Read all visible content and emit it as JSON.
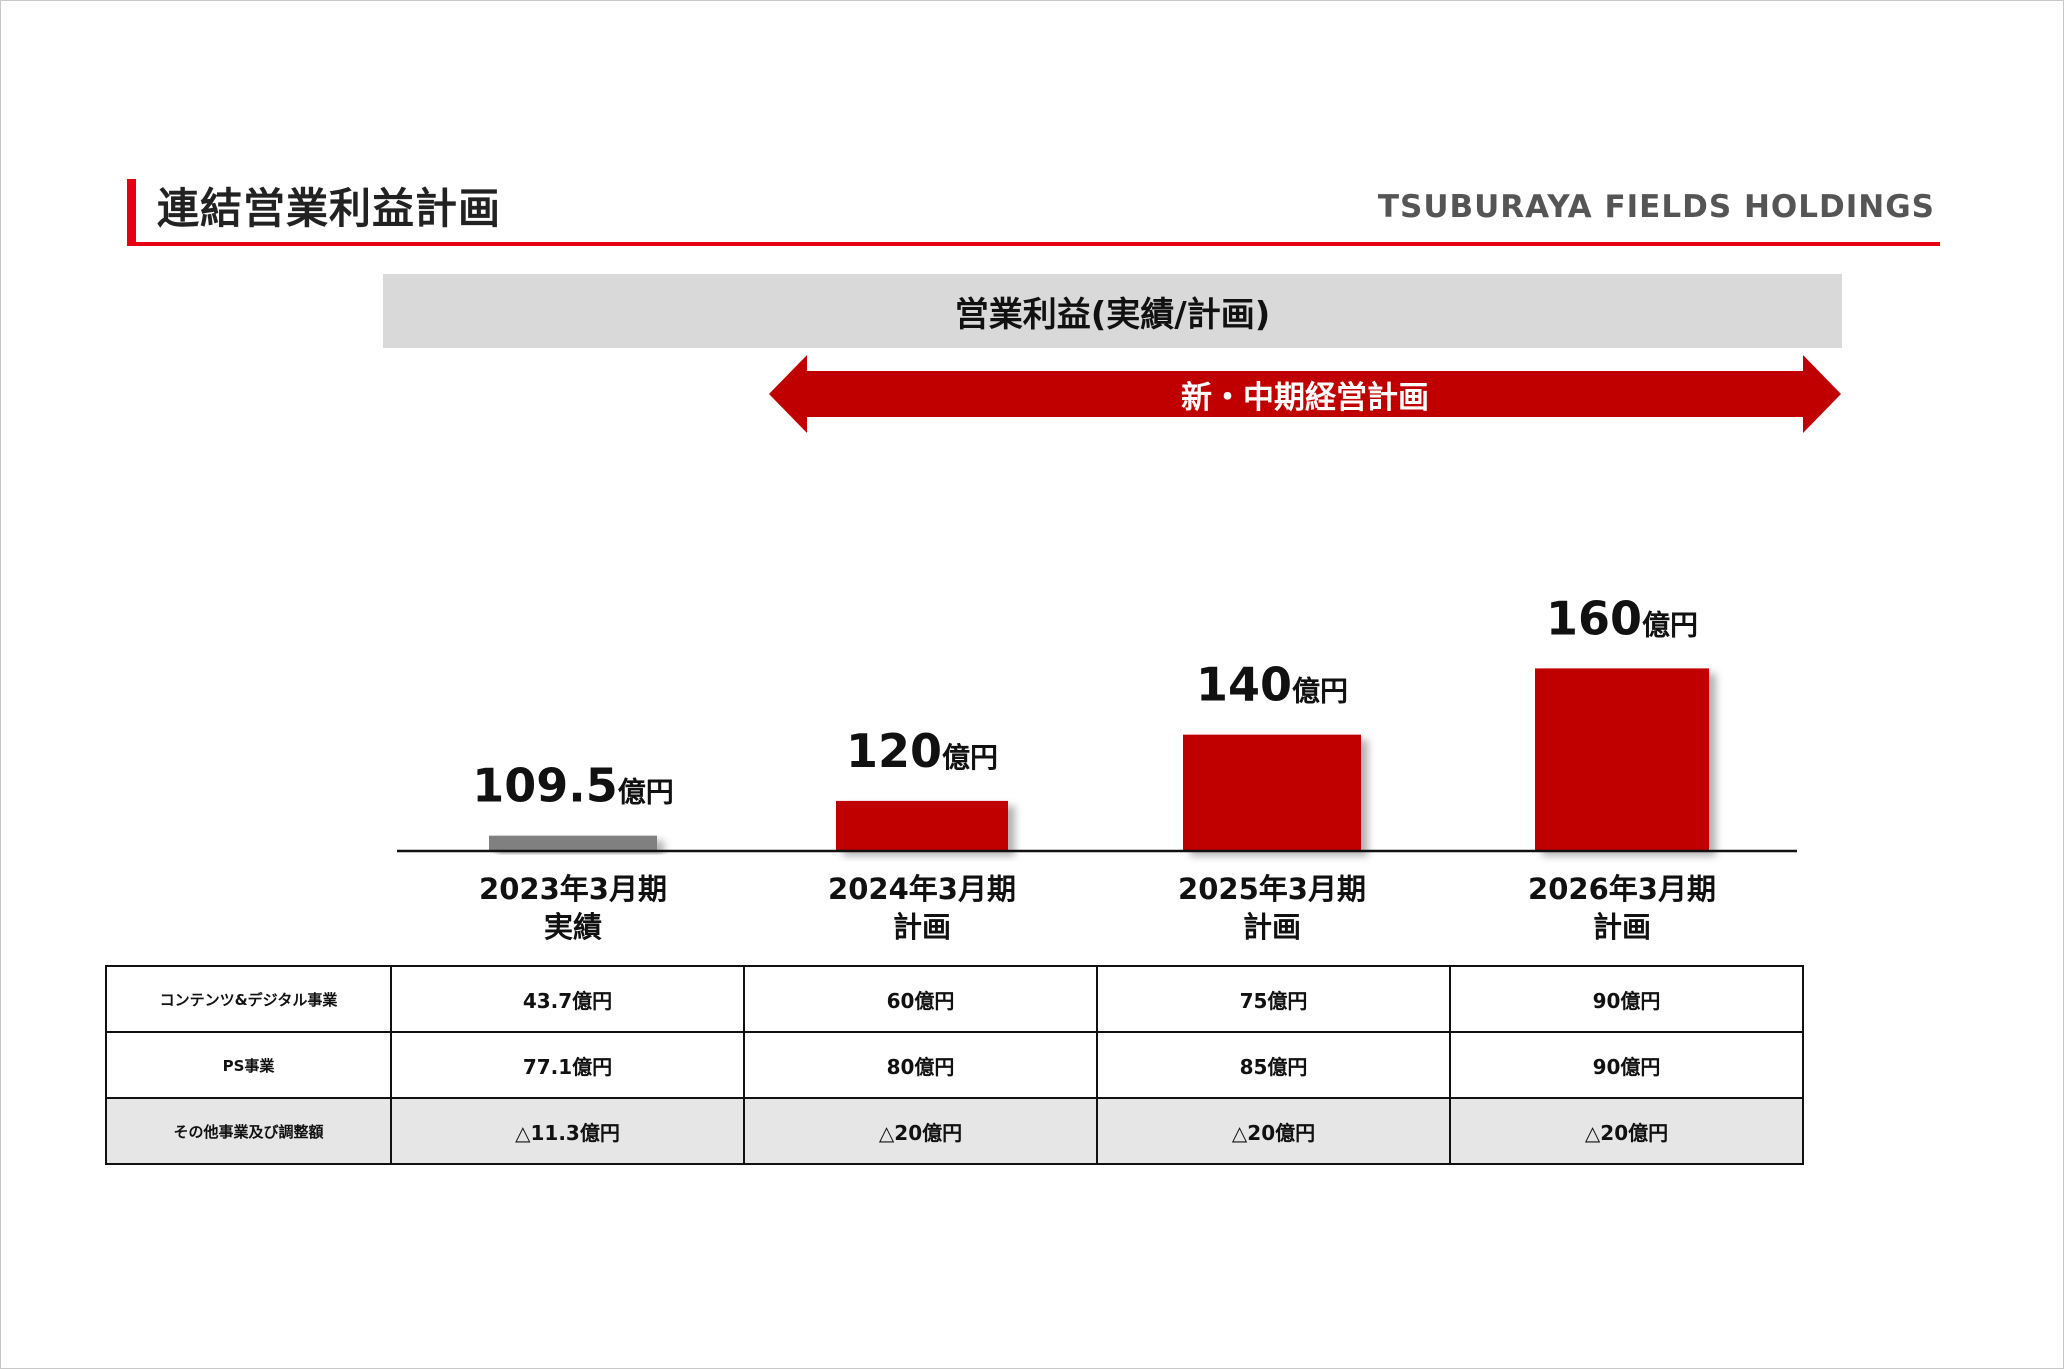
{
  "page": {
    "title": "連結営業利益計画",
    "brand": "TSUBURAYA FIELDS HOLDINGS",
    "chart_header": "営業利益(実績/計画)",
    "plan_arrow_label": "新・中期経営計画"
  },
  "colors": {
    "accent": "#e60012",
    "actual_bar": "#808080",
    "plan_bar": "#c00000",
    "arrow": "#c00000",
    "header_bg": "#d9d9d9"
  },
  "chart_data": {
    "type": "bar",
    "title": "営業利益(実績/計画)",
    "unit": "億円",
    "categories": [
      {
        "line1": "2023年3月期",
        "line2": "実績"
      },
      {
        "line1": "2024年3月期",
        "line2": "計画"
      },
      {
        "line1": "2025年3月期",
        "line2": "計画"
      },
      {
        "line1": "2026年3月期",
        "line2": "計画"
      }
    ],
    "values": [
      109.5,
      120,
      140,
      160
    ],
    "value_labels": [
      {
        "number": "109.5",
        "unit": "億円"
      },
      {
        "number": "120",
        "unit": "億円"
      },
      {
        "number": "140",
        "unit": "億円"
      },
      {
        "number": "160",
        "unit": "億円"
      }
    ],
    "bar_kind": [
      "actual",
      "plan",
      "plan",
      "plan"
    ],
    "legend": "none",
    "grid": false
  },
  "table": {
    "rows": [
      {
        "label": "コンテンツ&デジタル事業",
        "cells": [
          "43.7億円",
          "60億円",
          "75億円",
          "90億円"
        ],
        "shaded": false
      },
      {
        "label": "PS事業",
        "cells": [
          "77.1億円",
          "80億円",
          "85億円",
          "90億円"
        ],
        "shaded": false
      },
      {
        "label": "その他事業及び調整額",
        "cells": [
          "△11.3億円",
          "△20億円",
          "△20億円",
          "△20億円"
        ],
        "shaded": true
      }
    ]
  }
}
